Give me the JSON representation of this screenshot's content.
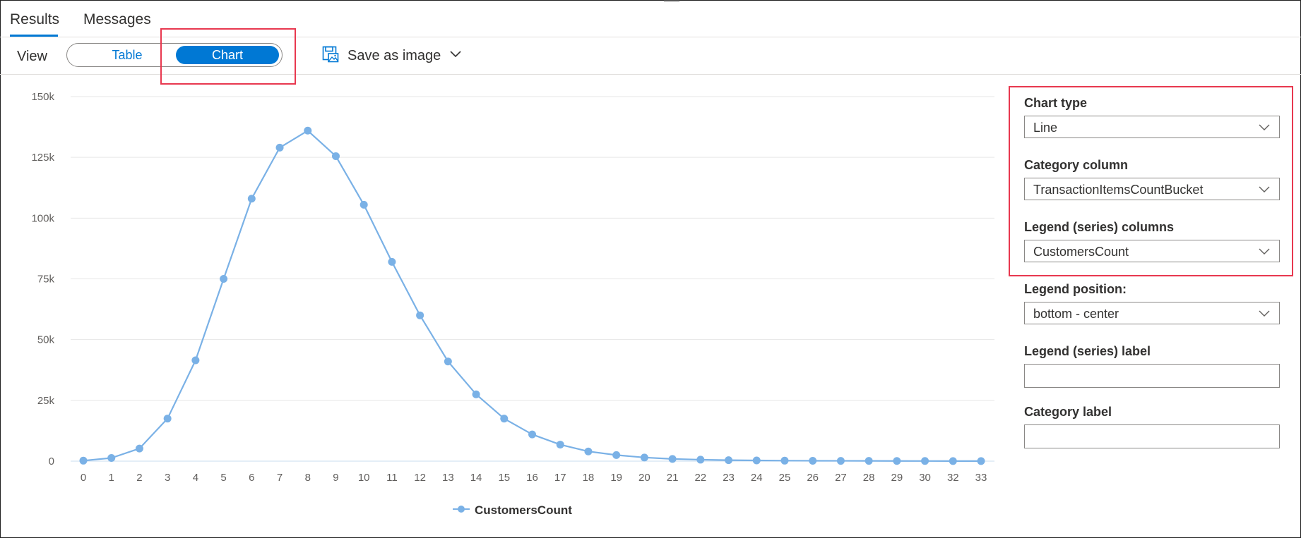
{
  "tabs": [
    {
      "label": "Results",
      "active": true
    },
    {
      "label": "Messages",
      "active": false
    }
  ],
  "toolbar": {
    "view_label": "View",
    "toggle": {
      "table_label": "Table",
      "chart_label": "Chart",
      "selected": "Chart"
    },
    "save_as_image_label": "Save as image"
  },
  "colors": {
    "accent": "#0078d4",
    "series_line": "#7ab1e6",
    "highlight": "#e8384f"
  },
  "chart_data": {
    "type": "line",
    "categories": [
      "0",
      "1",
      "2",
      "3",
      "4",
      "5",
      "6",
      "7",
      "8",
      "9",
      "10",
      "11",
      "12",
      "13",
      "14",
      "15",
      "16",
      "17",
      "18",
      "19",
      "20",
      "21",
      "22",
      "23",
      "24",
      "25",
      "26",
      "27",
      "28",
      "29",
      "30",
      "32",
      "33"
    ],
    "series": [
      {
        "name": "CustomersCount",
        "values": [
          200,
          1300,
          5200,
          17500,
          41500,
          75000,
          108000,
          129000,
          136000,
          125500,
          105500,
          82000,
          60000,
          41000,
          27500,
          17500,
          11000,
          6800,
          4000,
          2500,
          1500,
          900,
          600,
          400,
          300,
          200,
          150,
          120,
          100,
          80,
          60,
          40,
          30
        ]
      }
    ],
    "yticks": [
      0,
      25000,
      50000,
      75000,
      100000,
      125000,
      150000
    ],
    "ytick_labels": [
      "0",
      "25k",
      "50k",
      "75k",
      "100k",
      "125k",
      "150k"
    ],
    "ylim": [
      0,
      150000
    ],
    "grid": true,
    "legend_position": "bottom-center"
  },
  "settings": {
    "chart_type": {
      "label": "Chart type",
      "value": "Line"
    },
    "category_column": {
      "label": "Category column",
      "value": "TransactionItemsCountBucket"
    },
    "legend_columns": {
      "label": "Legend (series) columns",
      "value": "CustomersCount"
    },
    "legend_position": {
      "label": "Legend position:",
      "value": "bottom - center"
    },
    "legend_label": {
      "label": "Legend (series) label",
      "value": ""
    },
    "category_label": {
      "label": "Category label",
      "value": ""
    }
  }
}
